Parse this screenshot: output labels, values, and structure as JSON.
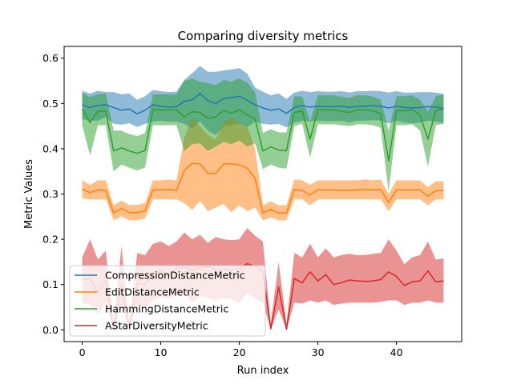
{
  "chart_data": {
    "type": "line",
    "title": "Comparing diversity metrics",
    "xlabel": "Run index",
    "ylabel": "Metric Values",
    "xlim": [
      -2.3,
      48.3
    ],
    "ylim": [
      -0.026,
      0.626
    ],
    "xticks": [
      0,
      10,
      20,
      30,
      40
    ],
    "yticks": [
      0.0,
      0.1,
      0.2,
      0.3,
      0.4,
      0.5,
      0.6
    ],
    "ytick_labels": [
      "0.0",
      "0.1",
      "0.2",
      "0.3",
      "0.4",
      "0.5",
      "0.6"
    ],
    "grid": false,
    "legend_position": "lower-left",
    "x": [
      0,
      1,
      2,
      3,
      4,
      5,
      6,
      7,
      8,
      9,
      10,
      11,
      12,
      13,
      14,
      15,
      16,
      17,
      18,
      19,
      20,
      21,
      22,
      23,
      24,
      25,
      26,
      27,
      28,
      29,
      30,
      31,
      32,
      33,
      34,
      35,
      36,
      37,
      38,
      39,
      40,
      41,
      42,
      43,
      44,
      45,
      46
    ],
    "series": [
      {
        "name": "CompressionDistanceMetric",
        "color": "#1f77b4",
        "values": [
          0.497,
          0.491,
          0.496,
          0.497,
          0.491,
          0.485,
          0.488,
          0.477,
          0.485,
          0.497,
          0.494,
          0.492,
          0.493,
          0.505,
          0.508,
          0.522,
          0.506,
          0.5,
          0.511,
          0.513,
          0.516,
          0.507,
          0.497,
          0.49,
          0.485,
          0.488,
          0.478,
          0.491,
          0.495,
          0.492,
          0.494,
          0.493,
          0.493,
          0.494,
          0.491,
          0.494,
          0.494,
          0.495,
          0.494,
          0.49,
          0.494,
          0.491,
          0.49,
          0.491,
          0.493,
          0.492,
          0.489
        ],
        "lower": [
          0.465,
          0.462,
          0.462,
          0.47,
          0.455,
          0.453,
          0.456,
          0.448,
          0.455,
          0.46,
          0.462,
          0.46,
          0.46,
          0.455,
          0.445,
          0.46,
          0.44,
          0.43,
          0.45,
          0.452,
          0.455,
          0.448,
          0.46,
          0.455,
          0.453,
          0.455,
          0.447,
          0.458,
          0.462,
          0.46,
          0.462,
          0.461,
          0.461,
          0.462,
          0.458,
          0.462,
          0.462,
          0.463,
          0.462,
          0.456,
          0.462,
          0.458,
          0.456,
          0.458,
          0.462,
          0.46,
          0.457
        ],
        "upper": [
          0.528,
          0.522,
          0.528,
          0.525,
          0.525,
          0.52,
          0.522,
          0.508,
          0.516,
          0.53,
          0.527,
          0.525,
          0.526,
          0.552,
          0.567,
          0.583,
          0.57,
          0.57,
          0.573,
          0.575,
          0.578,
          0.566,
          0.535,
          0.526,
          0.518,
          0.522,
          0.51,
          0.524,
          0.528,
          0.525,
          0.527,
          0.526,
          0.526,
          0.527,
          0.524,
          0.527,
          0.527,
          0.528,
          0.527,
          0.524,
          0.527,
          0.524,
          0.524,
          0.525,
          0.525,
          0.524,
          0.521
        ]
      },
      {
        "name": "EditDistanceMetric",
        "color": "#ff7f0e",
        "values": [
          0.311,
          0.303,
          0.309,
          0.308,
          0.258,
          0.268,
          0.259,
          0.259,
          0.263,
          0.309,
          0.309,
          0.31,
          0.308,
          0.352,
          0.368,
          0.366,
          0.346,
          0.345,
          0.367,
          0.367,
          0.364,
          0.357,
          0.335,
          0.258,
          0.266,
          0.258,
          0.258,
          0.31,
          0.308,
          0.298,
          0.309,
          0.309,
          0.309,
          0.308,
          0.308,
          0.309,
          0.31,
          0.309,
          0.31,
          0.281,
          0.309,
          0.309,
          0.309,
          0.309,
          0.295,
          0.307,
          0.308
        ],
        "lower": [
          0.29,
          0.288,
          0.288,
          0.288,
          0.242,
          0.25,
          0.242,
          0.242,
          0.246,
          0.288,
          0.288,
          0.288,
          0.288,
          0.28,
          0.265,
          0.285,
          0.262,
          0.27,
          0.278,
          0.26,
          0.275,
          0.262,
          0.27,
          0.242,
          0.248,
          0.242,
          0.242,
          0.288,
          0.288,
          0.275,
          0.288,
          0.288,
          0.288,
          0.288,
          0.288,
          0.288,
          0.288,
          0.288,
          0.288,
          0.262,
          0.288,
          0.288,
          0.288,
          0.288,
          0.275,
          0.288,
          0.288
        ],
        "upper": [
          0.33,
          0.32,
          0.33,
          0.33,
          0.275,
          0.285,
          0.276,
          0.276,
          0.28,
          0.33,
          0.33,
          0.332,
          0.33,
          0.425,
          0.47,
          0.45,
          0.43,
          0.42,
          0.46,
          0.47,
          0.455,
          0.45,
          0.4,
          0.275,
          0.284,
          0.275,
          0.275,
          0.332,
          0.33,
          0.32,
          0.33,
          0.33,
          0.33,
          0.33,
          0.33,
          0.33,
          0.332,
          0.33,
          0.332,
          0.3,
          0.33,
          0.33,
          0.33,
          0.33,
          0.315,
          0.328,
          0.328
        ]
      },
      {
        "name": "HammingDistanceMetric",
        "color": "#2ca02c",
        "values": [
          0.488,
          0.458,
          0.483,
          0.483,
          0.395,
          0.402,
          0.395,
          0.39,
          0.396,
          0.486,
          0.486,
          0.486,
          0.486,
          0.47,
          0.482,
          0.48,
          0.467,
          0.47,
          0.485,
          0.478,
          0.486,
          0.475,
          0.465,
          0.395,
          0.404,
          0.397,
          0.396,
          0.48,
          0.484,
          0.421,
          0.486,
          0.486,
          0.486,
          0.483,
          0.48,
          0.486,
          0.486,
          0.484,
          0.477,
          0.373,
          0.484,
          0.484,
          0.486,
          0.474,
          0.421,
          0.484,
          0.488
        ],
        "lower": [
          0.452,
          0.385,
          0.452,
          0.452,
          0.35,
          0.365,
          0.358,
          0.352,
          0.358,
          0.452,
          0.452,
          0.452,
          0.452,
          0.395,
          0.41,
          0.412,
          0.395,
          0.405,
          0.415,
          0.41,
          0.418,
          0.405,
          0.412,
          0.355,
          0.365,
          0.358,
          0.356,
          0.45,
          0.455,
          0.38,
          0.454,
          0.454,
          0.454,
          0.452,
          0.45,
          0.454,
          0.454,
          0.452,
          0.446,
          0.305,
          0.452,
          0.452,
          0.454,
          0.44,
          0.36,
          0.452,
          0.455
        ],
        "upper": [
          0.524,
          0.514,
          0.52,
          0.522,
          0.44,
          0.44,
          0.432,
          0.428,
          0.434,
          0.52,
          0.52,
          0.52,
          0.52,
          0.55,
          0.555,
          0.548,
          0.545,
          0.54,
          0.552,
          0.548,
          0.555,
          0.546,
          0.525,
          0.435,
          0.443,
          0.436,
          0.436,
          0.516,
          0.515,
          0.46,
          0.518,
          0.518,
          0.518,
          0.515,
          0.512,
          0.518,
          0.518,
          0.515,
          0.508,
          0.44,
          0.516,
          0.516,
          0.518,
          0.508,
          0.482,
          0.516,
          0.52
        ]
      },
      {
        "name": "AStarDiversityMetric",
        "color": "#d62728",
        "values": [
          0.112,
          0.112,
          0.082,
          0.11,
          0.002,
          0.1,
          0.005,
          0.105,
          0.1,
          0.122,
          0.13,
          0.12,
          0.135,
          0.138,
          0.132,
          0.136,
          0.14,
          0.132,
          0.134,
          0.132,
          0.136,
          0.146,
          0.14,
          0.128,
          0.002,
          0.095,
          0.001,
          0.113,
          0.104,
          0.128,
          0.108,
          0.122,
          0.1,
          0.104,
          0.11,
          0.108,
          0.107,
          0.108,
          0.111,
          0.128,
          0.118,
          0.098,
          0.106,
          0.108,
          0.13,
          0.106,
          0.108
        ],
        "lower": [
          0.06,
          0.055,
          0.035,
          0.06,
          0.001,
          0.055,
          0.002,
          0.055,
          0.05,
          0.065,
          0.075,
          0.068,
          0.078,
          0.08,
          0.06,
          0.075,
          0.07,
          0.065,
          0.07,
          0.068,
          0.06,
          0.08,
          0.07,
          0.06,
          0.001,
          0.045,
          0.001,
          0.06,
          0.058,
          0.065,
          0.06,
          0.065,
          0.055,
          0.058,
          0.06,
          0.06,
          0.06,
          0.06,
          0.062,
          0.065,
          0.065,
          0.055,
          0.06,
          0.06,
          0.065,
          0.06,
          0.06
        ],
        "upper": [
          0.16,
          0.2,
          0.155,
          0.175,
          0.015,
          0.185,
          0.015,
          0.17,
          0.165,
          0.19,
          0.195,
          0.185,
          0.195,
          0.215,
          0.2,
          0.21,
          0.192,
          0.205,
          0.2,
          0.198,
          0.2,
          0.225,
          0.208,
          0.195,
          0.015,
          0.15,
          0.015,
          0.17,
          0.16,
          0.19,
          0.16,
          0.18,
          0.16,
          0.165,
          0.168,
          0.165,
          0.165,
          0.168,
          0.17,
          0.2,
          0.175,
          0.145,
          0.16,
          0.165,
          0.195,
          0.155,
          0.158
        ]
      }
    ]
  }
}
